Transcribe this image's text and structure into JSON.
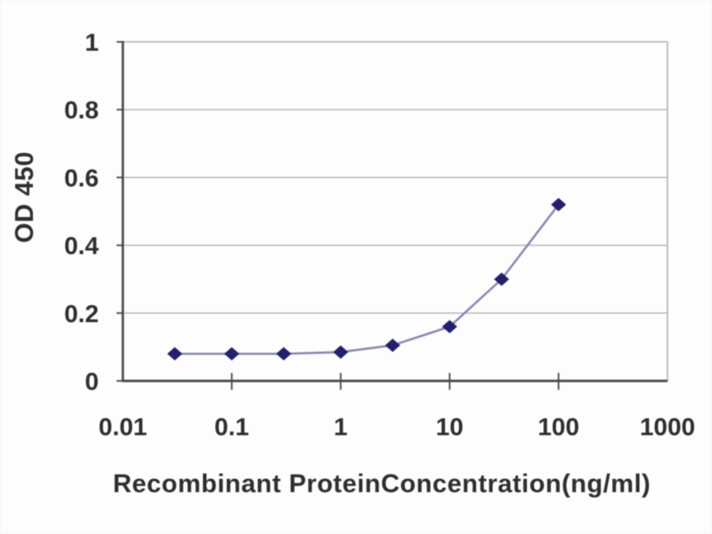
{
  "figure": {
    "background": "#fdfdfd"
  },
  "chart_data": {
    "type": "line",
    "title": "",
    "xlabel": "Recombinant ProteinConcentration(ng/ml)",
    "ylabel": "OD 450",
    "x_scale": "log",
    "y_scale": "linear",
    "xlim": [
      0.01,
      1000
    ],
    "ylim": [
      0,
      1
    ],
    "x_ticks": [
      "0.01",
      "0.1",
      "1",
      "10",
      "100",
      "1000"
    ],
    "y_ticks": [
      "0",
      "0.2",
      "0.4",
      "0.6",
      "0.8",
      "1"
    ],
    "grid": "horizontal gridlines at every 0.2",
    "legend": "none",
    "series": [
      {
        "name": "OD 450",
        "marker": "diamond",
        "marker_color": "#221f6b",
        "line_color": "#8587ac",
        "x": [
          0.03,
          0.1,
          0.3,
          1,
          3,
          10,
          30,
          100
        ],
        "y": [
          0.08,
          0.08,
          0.08,
          0.085,
          0.105,
          0.16,
          0.3,
          0.52
        ]
      }
    ],
    "colors": {
      "axis": "#4a4a4a",
      "grid": "#b3b3b3",
      "text": "#2e2e2e"
    }
  }
}
